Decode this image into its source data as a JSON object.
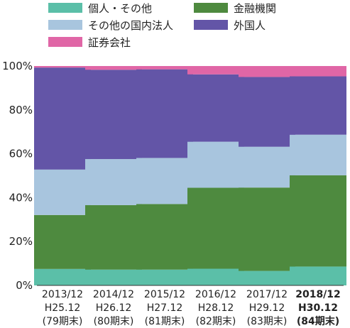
{
  "chart_data": {
    "type": "bar",
    "stacked": true,
    "normalized": true,
    "categories": [
      [
        "2013/12",
        "H25.12",
        "(79期末)"
      ],
      [
        "2014/12",
        "H26.12",
        "(80期末)"
      ],
      [
        "2015/12",
        "H27.12",
        "(81期末)"
      ],
      [
        "2016/12",
        "H28.12",
        "(82期末)"
      ],
      [
        "2017/12",
        "H29.12",
        "(83期末)"
      ],
      [
        "2018/12",
        "H30.12",
        "(84期末)"
      ]
    ],
    "highlight_category_index": 5,
    "yticks": [
      "0%",
      "20%",
      "40%",
      "60%",
      "80%",
      "100%"
    ],
    "ylim": [
      0,
      100
    ],
    "series": [
      {
        "name": "個人・その他",
        "color": "#5bbfa8",
        "values": [
          7.5,
          7.2,
          7.2,
          7.6,
          6.6,
          8.6
        ]
      },
      {
        "name": "金融機関",
        "color": "#4e8a3f",
        "values": [
          24.6,
          29.4,
          29.9,
          36.9,
          38.0,
          41.6
        ]
      },
      {
        "name": "その他の国内法人",
        "color": "#a8c5de",
        "values": [
          20.7,
          21.0,
          21.0,
          21.0,
          18.6,
          18.5
        ]
      },
      {
        "name": "外国人",
        "color": "#6355a7",
        "values": [
          46.5,
          40.7,
          40.4,
          30.7,
          31.8,
          26.6
        ]
      },
      {
        "name": "証券会社",
        "color": "#e066a6",
        "values": [
          0.7,
          1.7,
          1.5,
          3.8,
          5.0,
          4.7
        ]
      }
    ],
    "legend_position": "top",
    "grid": false
  }
}
